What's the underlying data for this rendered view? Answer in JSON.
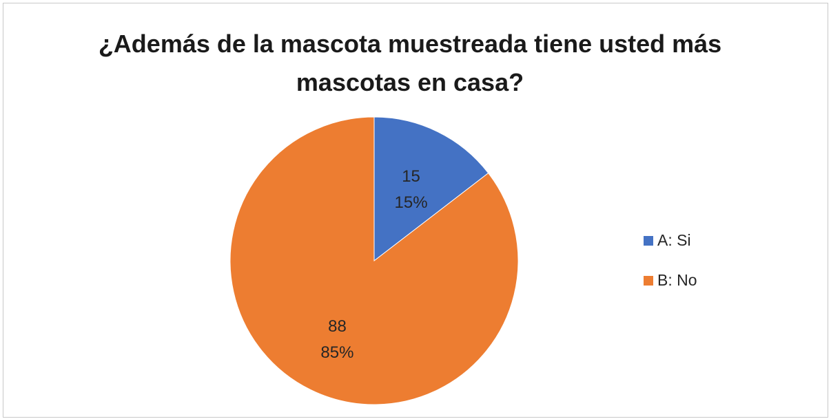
{
  "chart_data": {
    "type": "pie",
    "title": "¿Además de la mascota muestreada tiene usted más mascotas en casa?",
    "categories": [
      "A: Si",
      "B: No"
    ],
    "values": [
      15,
      88
    ],
    "percent_labels": [
      "15%",
      "85%"
    ],
    "value_labels": [
      "15",
      "88"
    ],
    "colors": [
      "#4472C4",
      "#ED7D31"
    ],
    "legend_position": "right",
    "start_angle_deg": 0,
    "direction": "clockwise"
  }
}
